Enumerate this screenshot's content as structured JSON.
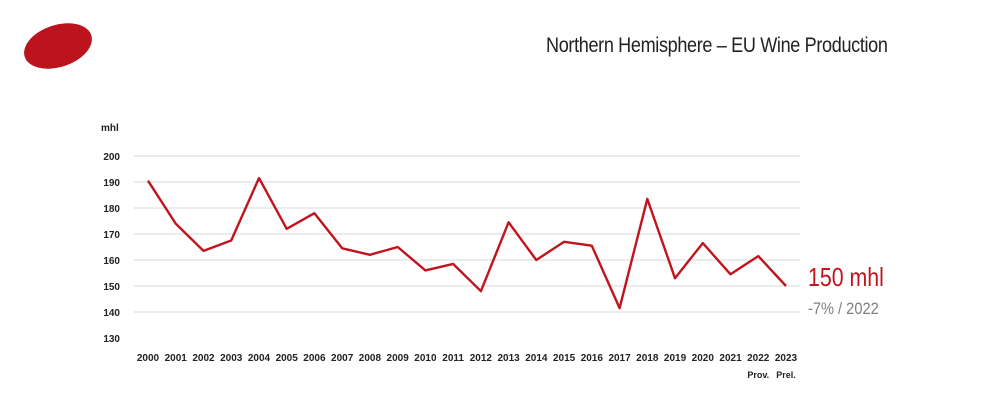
{
  "header": {
    "title": "Northern Hemisphere – EU Wine Production"
  },
  "logo": {
    "icon": "red-oval-logo-icon",
    "color": "#c0141e"
  },
  "callout": {
    "value": "150 mhl",
    "change": "-7% / 2022",
    "value_color": "#c0141e",
    "change_color": "#7f7f7f"
  },
  "chart_data": {
    "type": "line",
    "ylabel": "mhl",
    "ylim": [
      130,
      200
    ],
    "yticks": [
      130,
      140,
      150,
      160,
      170,
      180,
      190,
      200
    ],
    "grid": true,
    "categories": [
      "2000",
      "2001",
      "2002",
      "2003",
      "2004",
      "2005",
      "2006",
      "2007",
      "2008",
      "2009",
      "2010",
      "2011",
      "2012",
      "2013",
      "2014",
      "2015",
      "2016",
      "2017",
      "2018",
      "2019",
      "2020",
      "2021",
      "2022",
      "2023"
    ],
    "category_notes": {
      "2022": "Prov.",
      "2023": "Prel."
    },
    "series": [
      {
        "color": "#c0141e",
        "values": [
          190.5,
          174,
          163.5,
          167.5,
          191.5,
          172,
          178,
          164.5,
          162,
          165,
          156,
          158.5,
          148,
          174.5,
          160,
          167,
          165.5,
          141.5,
          183.5,
          153,
          166.5,
          154.5,
          161.5,
          150
        ]
      }
    ]
  }
}
